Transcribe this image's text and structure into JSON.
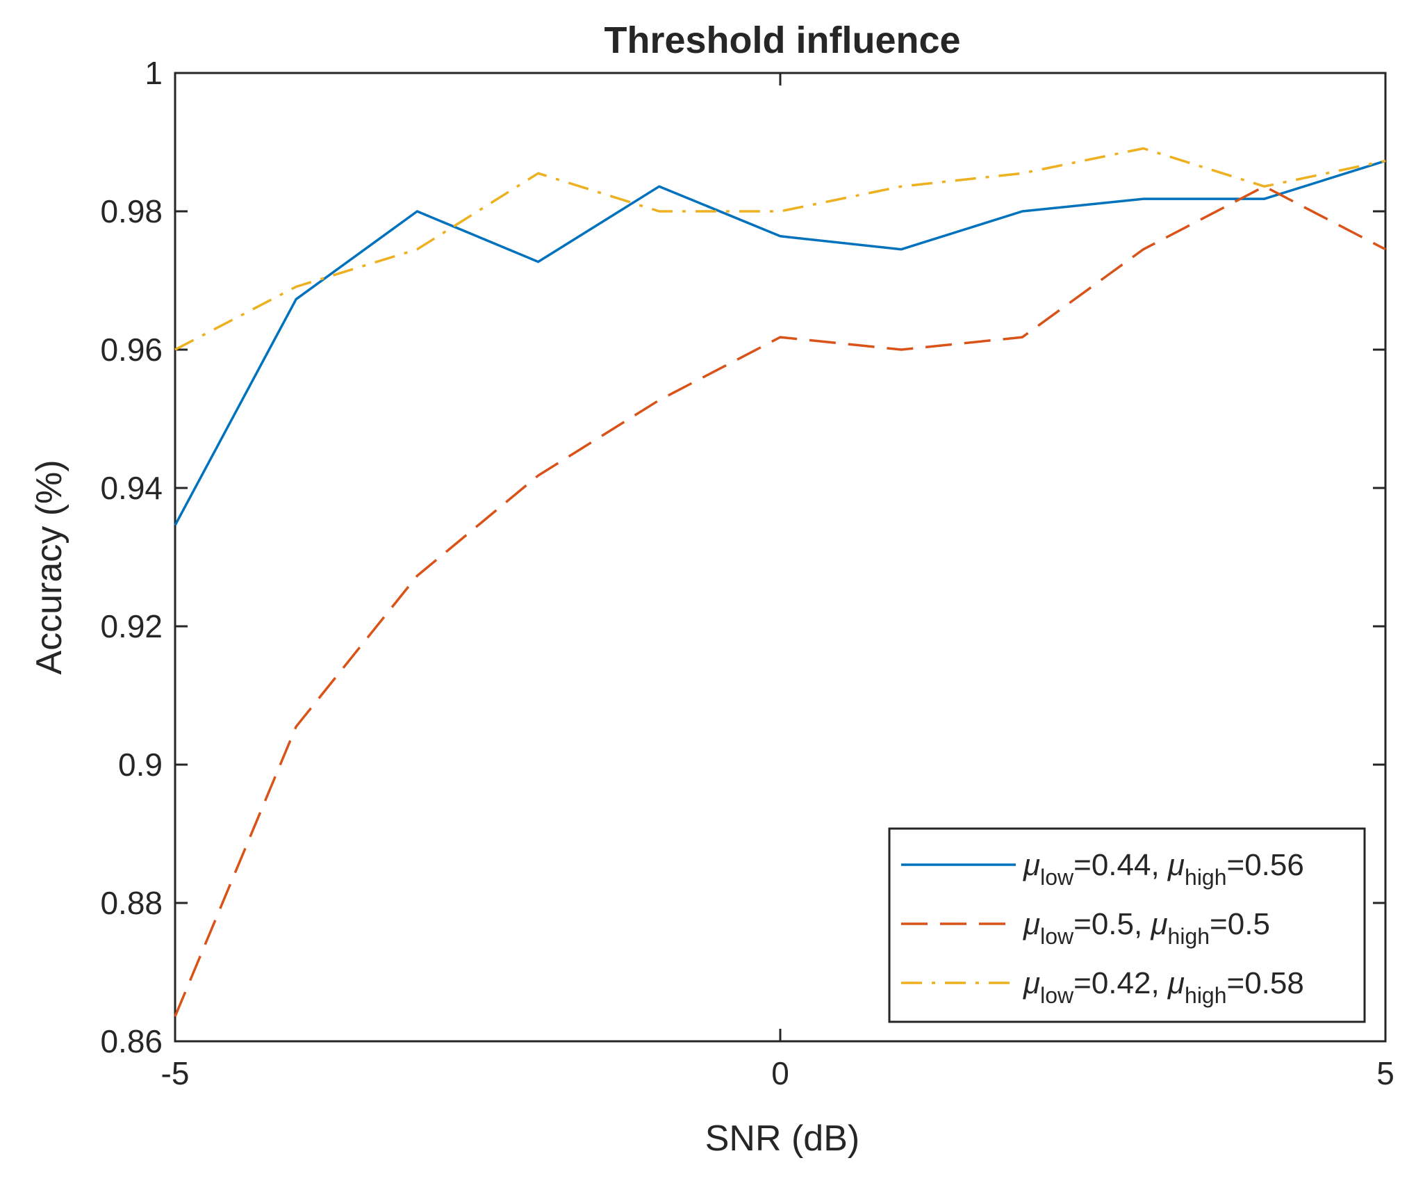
{
  "chart_data": {
    "type": "line",
    "title": "Threshold influence",
    "xlabel": "SNR (dB)",
    "ylabel": "Accuracy (%)",
    "xlim": [
      -5,
      5
    ],
    "ylim": [
      0.86,
      1.0
    ],
    "xticks": [
      -5,
      0,
      5
    ],
    "xtick_labels": [
      "-5",
      "0",
      "5"
    ],
    "yticks": [
      0.86,
      0.88,
      0.9,
      0.92,
      0.94,
      0.96,
      0.98,
      1.0
    ],
    "ytick_labels": [
      "0.86",
      "0.88",
      "0.9",
      "0.92",
      "0.94",
      "0.96",
      "0.98",
      "1"
    ],
    "grid": false,
    "legend_position": "bottom-right",
    "x": [
      -5,
      -4,
      -3,
      -2,
      -1,
      0,
      1,
      2,
      3,
      4,
      5
    ],
    "series": [
      {
        "name": "μlow=0.44, μhigh=0.56",
        "legend": {
          "sym1": "μ",
          "sub1": "low",
          "mid": "=0.44, ",
          "sym2": "μ",
          "sub2": "high",
          "end": "=0.56"
        },
        "color": "#0072BD",
        "style": "solid",
        "values": [
          0.9346,
          0.9673,
          0.98,
          0.9727,
          0.9836,
          0.9764,
          0.9745,
          0.98,
          0.9818,
          0.9818,
          0.9873
        ]
      },
      {
        "name": "μlow=0.5, μhigh=0.5",
        "legend": {
          "sym1": "μ",
          "sub1": "low",
          "mid": "=0.5, ",
          "sym2": "μ",
          "sub2": "high",
          "end": "=0.5"
        },
        "color": "#D95319",
        "style": "dashed",
        "values": [
          0.8636,
          0.9055,
          0.9273,
          0.9418,
          0.9527,
          0.9618,
          0.96,
          0.9618,
          0.9745,
          0.9836,
          0.9745
        ]
      },
      {
        "name": "μlow=0.42, μhigh=0.58",
        "legend": {
          "sym1": "μ",
          "sub1": "low",
          "mid": "=0.42, ",
          "sym2": "μ",
          "sub2": "high",
          "end": "=0.58"
        },
        "color": "#EDB120",
        "style": "dashdot",
        "values": [
          0.96,
          0.9691,
          0.9745,
          0.9855,
          0.98,
          0.98,
          0.9836,
          0.9855,
          0.9891,
          0.9836,
          0.9873
        ]
      }
    ]
  }
}
